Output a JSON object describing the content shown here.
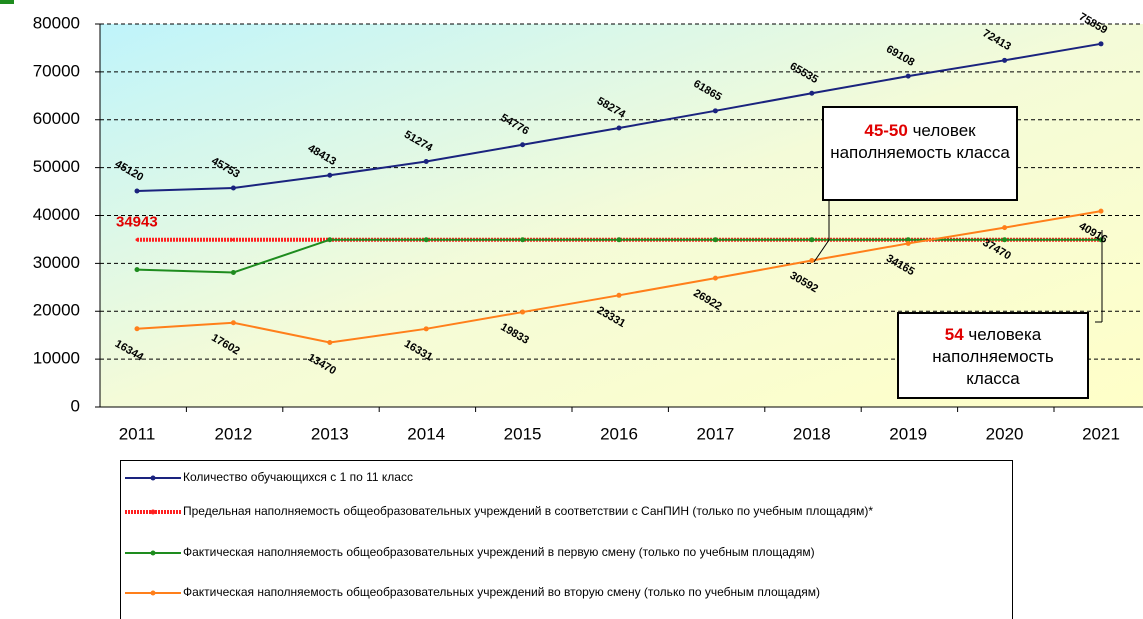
{
  "chart_data": {
    "type": "line",
    "categories": [
      "2011",
      "2012",
      "2013",
      "2014",
      "2015",
      "2016",
      "2017",
      "2018",
      "2019",
      "2020",
      "2021"
    ],
    "series": [
      {
        "name": "Количество обучающихся с 1 по 11 класс",
        "color": "#1a237e",
        "values": [
          45120,
          45753,
          48413,
          51274,
          54776,
          58274,
          61865,
          65535,
          69108,
          72413,
          75859
        ]
      },
      {
        "name": "Предельная наполняемость общеобразовательных учреждений в соответствии с СанПИН (только по учебным площадям)*",
        "color": "#ff2020",
        "values": [
          34943,
          34943,
          34943,
          34943,
          34943,
          34943,
          34943,
          34943,
          34943,
          34943,
          34943
        ]
      },
      {
        "name": "Фактическая наполняемость общеобразовательных учреждений в первую смену (только по учебным площадям)",
        "color": "#1e8c1e",
        "values": [
          28700,
          28100,
          34943,
          34943,
          34943,
          34943,
          34943,
          34943,
          34943,
          34943,
          34943
        ]
      },
      {
        "name": "Фактическая наполняемость общеобразовательных учреждений во вторую смену (только по учебным площадям)",
        "color": "#ff7f1a",
        "values": [
          16344,
          17602,
          13470,
          16331,
          19833,
          23331,
          26922,
          30592,
          34165,
          37470,
          40916
        ]
      }
    ],
    "ylim": [
      0,
      80000
    ],
    "yticks": [
      0,
      10000,
      20000,
      30000,
      40000,
      50000,
      60000,
      70000,
      80000
    ],
    "grid": true,
    "annotations": [
      {
        "highlight": "45-50",
        "text": "человек наполняемость класса"
      },
      {
        "highlight": "54",
        "text": "человека наполняемость класса"
      }
    ]
  }
}
